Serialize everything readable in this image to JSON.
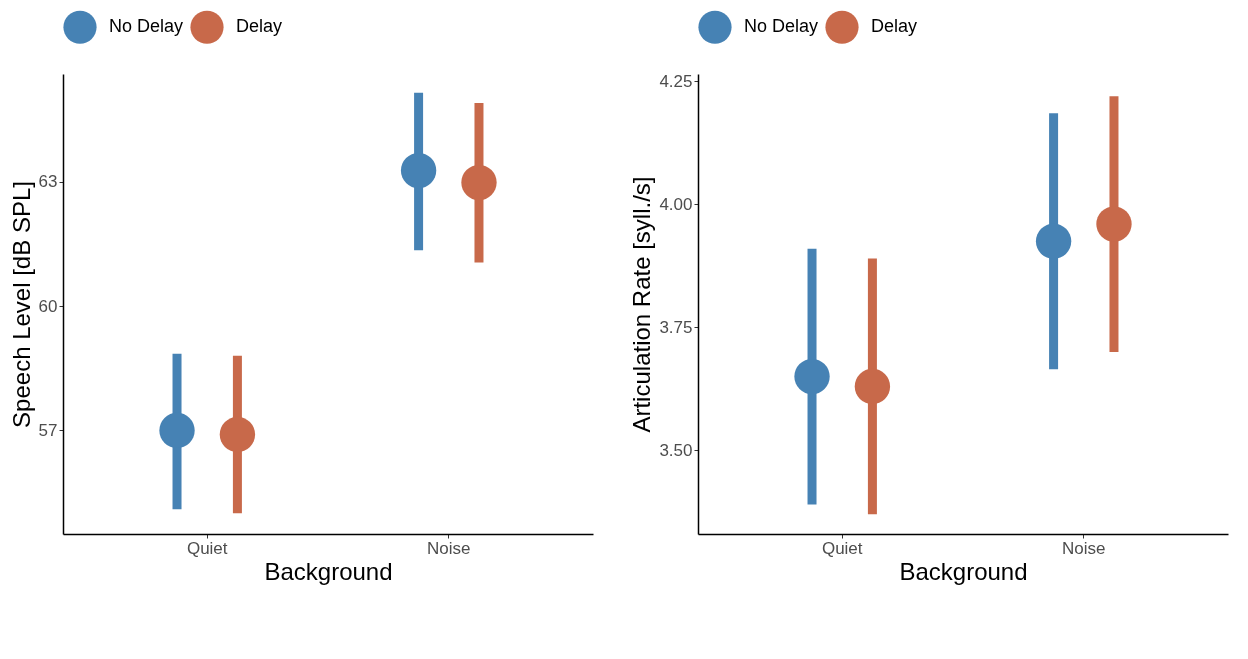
{
  "chart_data": [
    {
      "type": "scatter",
      "xlabel": "Background",
      "ylabel": "Speech Level [dB SPL]",
      "categories": [
        "Quiet",
        "Noise"
      ],
      "ylim": [
        54.5,
        65.6
      ],
      "yticks": [
        57,
        60,
        63
      ],
      "legend": "top",
      "marker": "circle",
      "series": [
        {
          "name": "No Delay",
          "color": "#4682b4",
          "values": [
            57.0,
            63.27
          ],
          "errors": [
            [
              55.1,
              58.85
            ],
            [
              61.35,
              65.15
            ]
          ]
        },
        {
          "name": "Delay",
          "color": "#c8694a",
          "values": [
            56.9,
            62.98
          ],
          "errors": [
            [
              55.0,
              58.8
            ],
            [
              61.05,
              64.9
            ]
          ]
        }
      ]
    },
    {
      "type": "scatter",
      "xlabel": "Background",
      "ylabel": "Articulation Rate [syll./s]",
      "categories": [
        "Quiet",
        "Noise"
      ],
      "ylim": [
        3.33,
        4.265
      ],
      "yticks": [
        {
          "value": 3.5,
          "label": "3.50"
        },
        {
          "value": 3.75,
          "label": "3.75"
        },
        {
          "value": 4.0,
          "label": "4.00"
        },
        {
          "value": 4.25,
          "label": "4.25"
        }
      ],
      "legend": "top",
      "marker": "circle",
      "series": [
        {
          "name": "No Delay",
          "color": "#4682b4",
          "values": [
            3.65,
            3.925
          ],
          "errors": [
            [
              3.39,
              3.91
            ],
            [
              3.665,
              4.185
            ]
          ]
        },
        {
          "name": "Delay",
          "color": "#c8694a",
          "values": [
            3.63,
            3.96
          ],
          "errors": [
            [
              3.37,
              3.89
            ],
            [
              3.7,
              4.22
            ]
          ]
        }
      ]
    }
  ]
}
